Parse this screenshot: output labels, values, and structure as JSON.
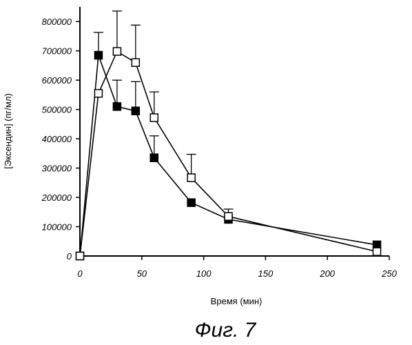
{
  "chart_data": {
    "type": "line",
    "title": "",
    "caption": "Фиг. 7",
    "xlabel": "Время (мин)",
    "ylabel": "[Эксендин] (пг/мл)",
    "xlim": [
      0,
      250
    ],
    "ylim": [
      0,
      850000
    ],
    "xticks": [
      0,
      50,
      100,
      150,
      200,
      250
    ],
    "yticks": [
      0,
      100000,
      200000,
      300000,
      400000,
      500000,
      600000,
      700000,
      800000
    ],
    "xtick_labels": [
      "0",
      "50",
      "100",
      "150",
      "200",
      "250"
    ],
    "ytick_labels": [
      "0",
      "100000",
      "200000",
      "300000",
      "400000",
      "500000",
      "600000",
      "700000",
      "800000"
    ],
    "grid": false,
    "legend": "none",
    "colors": {
      "line": "#000000",
      "axis": "#000000"
    },
    "series": [
      {
        "marker": "filled-square",
        "x": [
          0,
          15,
          30,
          45,
          60,
          90,
          120,
          240
        ],
        "y": [
          0,
          685000,
          510000,
          495000,
          335000,
          182000,
          125000,
          38000
        ],
        "error_plus": [
          0,
          78000,
          90000,
          100000,
          75000,
          0,
          0,
          0
        ]
      },
      {
        "marker": "open-square",
        "x": [
          0,
          15,
          30,
          45,
          60,
          90,
          120,
          240
        ],
        "y": [
          0,
          555000,
          698000,
          660000,
          472000,
          267000,
          135000,
          15000
        ],
        "error_plus": [
          0,
          0,
          138000,
          128000,
          88000,
          80000,
          25000,
          0
        ]
      }
    ]
  }
}
